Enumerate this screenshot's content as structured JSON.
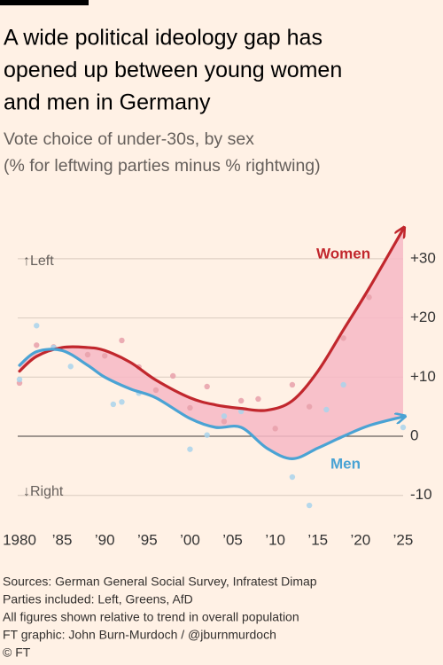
{
  "chart_data": {
    "type": "line",
    "title_lines": [
      "A wide political ideology gap has",
      "opened up between young women",
      "and men in Germany"
    ],
    "subtitle_lines": [
      "Vote choice of under-30s, by sex",
      "(% for leftwing parties minus % rightwing)"
    ],
    "annotations": [
      "↑Left",
      "↓Right"
    ],
    "footer_lines": [
      "Sources: German General Social Survey, Infratest Dimap",
      "Parties included: Left, Greens, AfD",
      "All figures shown relative to trend in overall population",
      "FT graphic: John Burn-Murdoch / @jburnmurdoch",
      "© FT"
    ],
    "x": [
      1980,
      1982,
      1985,
      1988,
      1990,
      1993,
      1996,
      2000,
      2003,
      2006,
      2009,
      2012,
      2015,
      2018,
      2021,
      2025
    ],
    "series": [
      {
        "name": "Women",
        "color": "#c1272d",
        "point_color": "#e8a0aa",
        "values": [
          11,
          13.5,
          15,
          15,
          14.5,
          12.5,
          9.5,
          6.5,
          5.3,
          4.7,
          4.4,
          6,
          11,
          18,
          25,
          35
        ],
        "points": {
          "x": [
            1980,
            1982,
            1984,
            1988,
            1990,
            1992,
            1994,
            1996,
            1998,
            2000,
            2002,
            2004,
            2006,
            2008,
            2010,
            2012,
            2014,
            2018,
            2021
          ],
          "values": [
            9,
            15.4,
            15.1,
            13.8,
            13.6,
            16.2,
            11.7,
            7.8,
            10.2,
            4.8,
            8.4,
            2.5,
            6,
            6.3,
            1.3,
            8.7,
            5,
            16.6,
            23.5
          ]
        }
      },
      {
        "name": "Men",
        "color": "#4aa3d4",
        "point_color": "#a9d3ec",
        "values": [
          12,
          14.3,
          14.5,
          12,
          10,
          8,
          6.5,
          3,
          1.5,
          1.5,
          -2,
          -3.8,
          -2,
          0,
          1.8,
          3.3
        ],
        "points": {
          "x": [
            1980,
            1982,
            1984,
            1986,
            1991,
            1992,
            1994,
            2000,
            2002,
            2004,
            2006,
            2012,
            2014,
            2016,
            2018,
            2025
          ],
          "values": [
            9.6,
            18.7,
            15,
            11.8,
            5.4,
            5.8,
            7.3,
            -2.2,
            0.2,
            3.4,
            4.2,
            -6.9,
            -11.7,
            4.5,
            8.7,
            1.5
          ]
        }
      }
    ],
    "area_color": "#f7b8c6",
    "xlim": [
      1979.5,
      2025.5
    ],
    "xticks": [
      1980,
      {
        "value": 1985,
        "label": "’85"
      },
      {
        "value": 1990,
        "label": "’90"
      },
      {
        "value": 1995,
        "label": "’95"
      },
      {
        "value": 2000,
        "label": "’00"
      },
      {
        "value": 2005,
        "label": "’05"
      },
      {
        "value": 2010,
        "label": "’10"
      },
      {
        "value": 2015,
        "label": "’15"
      },
      {
        "value": 2020,
        "label": "’20"
      },
      {
        "value": 2025,
        "label": "’25"
      }
    ],
    "ylim": [
      -13,
      37
    ],
    "yticks": [
      {
        "value": -10,
        "label": "-10"
      },
      0,
      {
        "value": 10,
        "label": "+10"
      },
      {
        "value": 20,
        "label": "+20"
      },
      {
        "value": 30,
        "label": "+30"
      }
    ],
    "grid": true
  }
}
